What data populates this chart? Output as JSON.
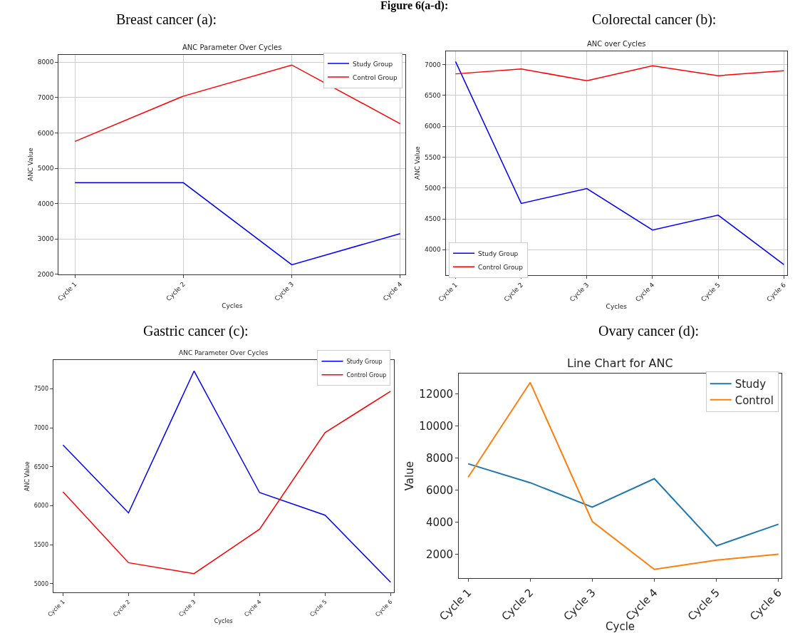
{
  "chart_data": [
    {
      "type": "line",
      "title": "ANC Parameter Over Cycles",
      "annotations": [
        "Figure 6(a-d):",
        "Breast cancer (a):"
      ],
      "xlabel": "Cycles",
      "ylabel": "ANC Value",
      "categories": [
        "Cycle 1",
        "Cycle 2",
        "Cycle 3",
        "Cycle 4"
      ],
      "series": [
        {
          "name": "Study Group",
          "color": "#0000ff",
          "values": [
            4590,
            4590,
            2270,
            3150
          ]
        },
        {
          "name": "Control Group",
          "color": "#ff0000",
          "values": [
            5760,
            7040,
            7920,
            6260
          ]
        }
      ],
      "ylim": [
        2000,
        8215
      ],
      "yticks": [
        2000,
        3000,
        4000,
        5000,
        6000,
        7000,
        8000
      ],
      "grid": true,
      "legend": "top right"
    },
    {
      "type": "line",
      "title": "ANC over Cycles",
      "annotations": [
        "Colorectal cancer (b):"
      ],
      "xlabel": "Cycles",
      "ylabel": "ANC Value",
      "categories": [
        "Cycle 1",
        "Cycle 2",
        "Cycle 3",
        "Cycle 4",
        "Cycle 5",
        "Cycle 6"
      ],
      "series": [
        {
          "name": "Study Group",
          "color": "#0000ff",
          "values": [
            7050,
            4750,
            4990,
            4320,
            4560,
            3760
          ]
        },
        {
          "name": "Control Group",
          "color": "#ff0000",
          "values": [
            6850,
            6930,
            6740,
            6980,
            6820,
            6900
          ]
        }
      ],
      "ylim": [
        3590,
        7220
      ],
      "yticks": [
        4000,
        4500,
        5000,
        5500,
        6000,
        6500,
        7000
      ],
      "grid": true,
      "legend": "bottom left"
    },
    {
      "type": "line",
      "title": "ANC Parameter Over Cycles",
      "annotations": [
        "Gastric cancer (c):"
      ],
      "xlabel": "Cycles",
      "ylabel": "ANC Value",
      "categories": [
        "Cycle 1",
        "Cycle 2",
        "Cycle 3",
        "Cycle 4",
        "Cycle 5",
        "Cycle 6"
      ],
      "series": [
        {
          "name": "Study Group",
          "color": "#0000ff",
          "values": [
            6780,
            5910,
            7730,
            6170,
            5880,
            5020
          ]
        },
        {
          "name": "Control Group",
          "color": "#ff0000",
          "values": [
            6180,
            5270,
            5130,
            5700,
            6940,
            7470
          ]
        }
      ],
      "ylim": [
        4887,
        7870
      ],
      "yticks": [
        5000,
        5500,
        6000,
        6500,
        7000,
        7500
      ],
      "grid": false,
      "legend": "top right"
    },
    {
      "type": "line",
      "title": "Line Chart for ANC",
      "annotations": [
        "Ovary cancer (d):"
      ],
      "xlabel": "Cycle",
      "ylabel": "Value",
      "categories": [
        "Cycle 1",
        "Cycle 2",
        "Cycle 3",
        "Cycle 4",
        "Cycle 5",
        "Cycle 6"
      ],
      "series": [
        {
          "name": "Study",
          "color": "#1f77b4",
          "values": [
            7650,
            6470,
            4950,
            6720,
            2540,
            3890
          ]
        },
        {
          "name": "Control",
          "color": "#ff7f0e",
          "values": [
            6810,
            12710,
            4060,
            1080,
            1650,
            2020
          ]
        }
      ],
      "ylim": [
        516,
        13265
      ],
      "yticks": [
        2000,
        4000,
        6000,
        8000,
        10000,
        12000
      ],
      "grid": false,
      "legend": "top right"
    }
  ]
}
